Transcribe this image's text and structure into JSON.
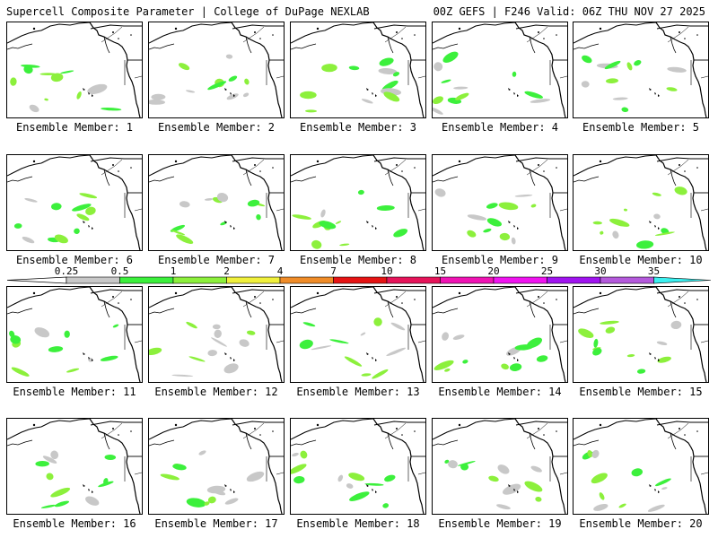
{
  "header": {
    "left": "Supercell Composite Parameter | College of DuPage NEXLAB",
    "right": "00Z GEFS | F246 Valid: 06Z THU NOV 27 2025"
  },
  "colorbar": {
    "bins": [
      {
        "label": "0.25",
        "color": "#c8c8c8"
      },
      {
        "label": "0.5",
        "color": "#3cf03c"
      },
      {
        "label": "1",
        "color": "#8cf03c"
      },
      {
        "label": "2",
        "color": "#f0f03c"
      },
      {
        "label": "4",
        "color": "#f08c28"
      },
      {
        "label": "7",
        "color": "#e61414"
      },
      {
        "label": "10",
        "color": "#e6145a"
      },
      {
        "label": "15",
        "color": "#f014b4"
      },
      {
        "label": "20",
        "color": "#f014f0"
      },
      {
        "label": "25",
        "color": "#a014f0"
      },
      {
        "label": "30",
        "color": "#b45adc"
      },
      {
        "label": "35",
        "color": "#3cf0f0"
      }
    ]
  },
  "members": [
    {
      "label": "Ensemble Member: 1"
    },
    {
      "label": "Ensemble Member: 2"
    },
    {
      "label": "Ensemble Member: 3"
    },
    {
      "label": "Ensemble Member: 4"
    },
    {
      "label": "Ensemble Member: 5"
    },
    {
      "label": "Ensemble Member: 6"
    },
    {
      "label": "Ensemble Member: 7"
    },
    {
      "label": "Ensemble Member: 8"
    },
    {
      "label": "Ensemble Member: 9"
    },
    {
      "label": "Ensemble Member: 10"
    },
    {
      "label": "Ensemble Member: 11"
    },
    {
      "label": "Ensemble Member: 12"
    },
    {
      "label": "Ensemble Member: 13"
    },
    {
      "label": "Ensemble Member: 14"
    },
    {
      "label": "Ensemble Member: 15"
    },
    {
      "label": "Ensemble Member: 16"
    },
    {
      "label": "Ensemble Member: 17"
    },
    {
      "label": "Ensemble Member: 18"
    },
    {
      "label": "Ensemble Member: 19"
    },
    {
      "label": "Ensemble Member: 20"
    }
  ]
}
